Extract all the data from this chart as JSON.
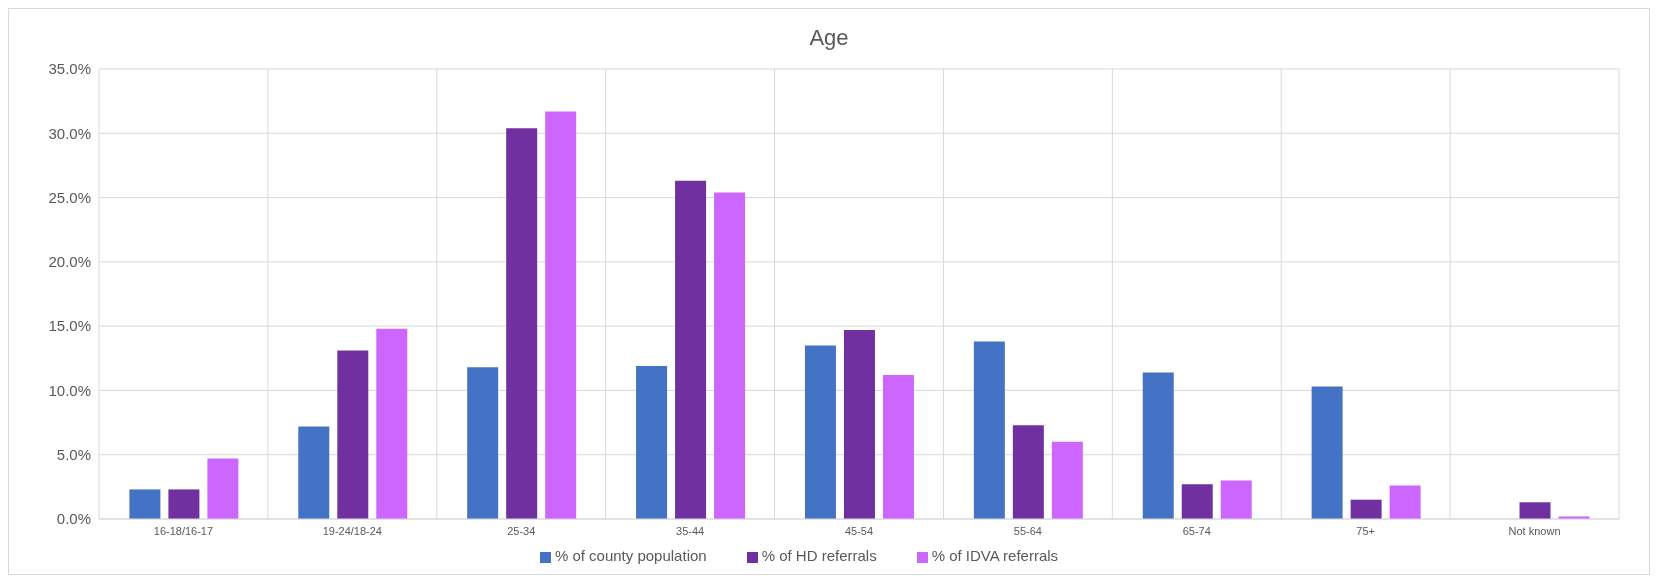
{
  "chart_data": {
    "type": "bar",
    "title": "Age",
    "categories": [
      "16-18/16-17",
      "19-24/18-24",
      "25-34",
      "35-44",
      "45-54",
      "55-64",
      "65-74",
      "75+",
      "Not known"
    ],
    "series": [
      {
        "name": "% of county population",
        "color": "#4472c4",
        "values": [
          2.3,
          7.2,
          11.8,
          11.9,
          13.5,
          13.8,
          11.4,
          10.3,
          null
        ]
      },
      {
        "name": "% of HD referrals",
        "color": "#7030a0",
        "values": [
          2.3,
          13.1,
          30.4,
          26.3,
          14.7,
          7.3,
          2.7,
          1.5,
          1.3
        ]
      },
      {
        "name": "% of IDVA referrals",
        "color": "#cc66ff",
        "values": [
          4.7,
          14.8,
          31.7,
          25.4,
          11.2,
          6.0,
          3.0,
          2.6,
          0.2
        ]
      }
    ],
    "ylim": [
      0,
      35
    ],
    "yticks": [
      {
        "value": 0,
        "label": "0.0%"
      },
      {
        "value": 5,
        "label": "5.0%"
      },
      {
        "value": 10,
        "label": "10.0%"
      },
      {
        "value": 15,
        "label": "15.0%"
      },
      {
        "value": 20,
        "label": "20.0%"
      },
      {
        "value": 25,
        "label": "25.0%"
      },
      {
        "value": 30,
        "label": "30.0%"
      },
      {
        "value": 35,
        "label": "35.0%"
      }
    ],
    "grid": true,
    "legend": "bottom"
  }
}
